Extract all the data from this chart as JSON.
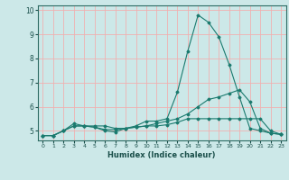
{
  "xlabel": "Humidex (Indice chaleur)",
  "ylabel": "",
  "bg_color": "#cce8e8",
  "grid_color": "#f0b0b0",
  "line_color": "#1a7a6e",
  "xlim": [
    -0.5,
    23.5
  ],
  "ylim": [
    4.6,
    10.2
  ],
  "x_ticks": [
    0,
    1,
    2,
    3,
    4,
    5,
    6,
    7,
    8,
    9,
    10,
    11,
    12,
    13,
    14,
    15,
    16,
    17,
    18,
    19,
    20,
    21,
    22,
    23
  ],
  "y_ticks": [
    5,
    6,
    7,
    8,
    9,
    10
  ],
  "line1_x": [
    0,
    1,
    2,
    3,
    4,
    5,
    6,
    7,
    8,
    9,
    10,
    11,
    12,
    13,
    14,
    15,
    16,
    17,
    18,
    19,
    20,
    21,
    22,
    23
  ],
  "line1_y": [
    4.8,
    4.8,
    5.0,
    5.3,
    5.2,
    5.2,
    5.2,
    5.1,
    5.1,
    5.2,
    5.4,
    5.4,
    5.5,
    6.6,
    8.3,
    9.8,
    9.5,
    8.9,
    7.75,
    6.4,
    5.1,
    5.0,
    4.9,
    4.85
  ],
  "line2_x": [
    0,
    1,
    2,
    3,
    4,
    5,
    6,
    7,
    8,
    9,
    10,
    11,
    12,
    13,
    14,
    15,
    16,
    17,
    18,
    19,
    20,
    21,
    22,
    23
  ],
  "line2_y": [
    4.8,
    4.8,
    5.0,
    5.2,
    5.2,
    5.15,
    5.05,
    5.05,
    5.1,
    5.15,
    5.2,
    5.2,
    5.25,
    5.35,
    5.5,
    5.5,
    5.5,
    5.5,
    5.5,
    5.5,
    5.5,
    5.5,
    5.0,
    4.85
  ],
  "line3_x": [
    0,
    1,
    2,
    3,
    4,
    5,
    6,
    7,
    8,
    9,
    10,
    11,
    12,
    13,
    14,
    15,
    16,
    17,
    18,
    19,
    20,
    21,
    22,
    23
  ],
  "line3_y": [
    4.8,
    4.8,
    5.0,
    5.2,
    5.2,
    5.15,
    5.0,
    4.95,
    5.1,
    5.15,
    5.2,
    5.3,
    5.4,
    5.5,
    5.7,
    6.0,
    6.3,
    6.4,
    6.55,
    6.7,
    6.2,
    5.1,
    4.9,
    4.85
  ]
}
